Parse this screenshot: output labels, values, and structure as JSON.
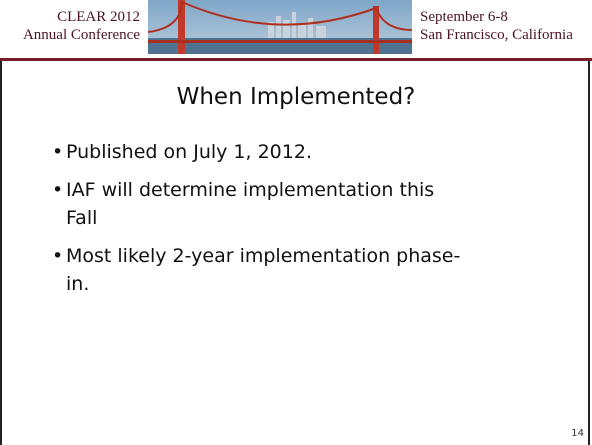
{
  "header": {
    "left": [
      "CLEAR 2012",
      "Annual Conference"
    ],
    "right": [
      "September 6-8",
      "San Francisco, California"
    ]
  },
  "title": "When Implemented?",
  "bullets": [
    [
      "Published on July 1, 2012."
    ],
    [
      "IAF will determine implementation this",
      "Fall"
    ],
    [
      "Most likely 2-year implementation phase-",
      "in."
    ]
  ],
  "page_number": "14"
}
